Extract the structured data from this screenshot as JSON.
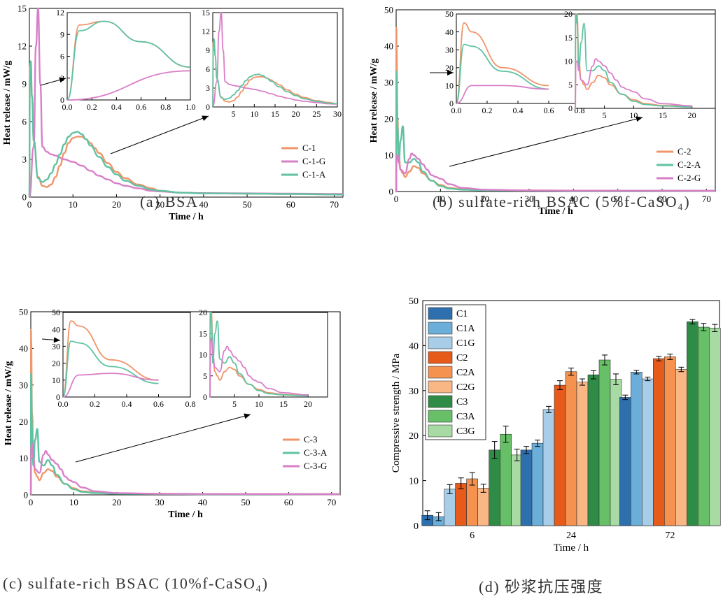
{
  "captions": {
    "a": "(a) BSA",
    "b": "(b) sulfate-rich BSAC (5%f-CaSO₄)",
    "c": "(c) sulfate-rich BSAC (10%f-CaSO₄)",
    "d": "(d) 砂浆抗压强度"
  },
  "chart_data": [
    {
      "id": "a",
      "type": "line",
      "xlabel": "Time / h",
      "ylabel": "Heat release / mW/g",
      "xlim": [
        0,
        72
      ],
      "ylim": [
        0,
        15
      ],
      "xticks": [
        0,
        10,
        20,
        30,
        40,
        50,
        60,
        70
      ],
      "yticks": [
        0,
        3,
        6,
        9,
        12,
        15
      ],
      "legend_position": "right",
      "legend": [
        "C-1",
        "C-1-G",
        "C-1-A"
      ],
      "colors": {
        "C-1": "#f0956a",
        "C-1-G": "#d97fc8",
        "C-1-A": "#5fc3a2"
      },
      "series": [
        {
          "name": "C-1",
          "x": [
            0,
            0.1,
            0.3,
            0.6,
            1,
            2,
            3,
            4,
            5,
            6,
            7,
            8,
            9,
            10,
            11,
            12,
            13,
            14,
            15,
            16,
            18,
            20,
            22,
            25,
            28,
            30,
            35,
            40,
            50,
            60,
            72
          ],
          "y": [
            0,
            10.3,
            10.8,
            8,
            4.5,
            1.6,
            0.9,
            0.8,
            1.0,
            1.6,
            2.5,
            3.5,
            4.3,
            4.7,
            4.8,
            4.8,
            4.6,
            4.3,
            3.9,
            3.5,
            2.7,
            2.0,
            1.5,
            1.0,
            0.7,
            0.5,
            0.35,
            0.3,
            0.28,
            0.25,
            0.2
          ]
        },
        {
          "name": "C-1-G",
          "x": [
            0,
            1,
            1.5,
            2,
            2.5,
            3,
            4,
            5,
            6,
            8,
            10,
            12,
            14,
            16,
            18,
            20,
            22,
            25,
            28,
            30,
            35,
            40,
            50,
            60,
            72
          ],
          "y": [
            0,
            4.0,
            12,
            15,
            9,
            4.0,
            3.6,
            3.4,
            3.3,
            3.0,
            2.8,
            2.5,
            2.1,
            1.7,
            1.4,
            1.1,
            0.9,
            0.7,
            0.5,
            0.45,
            0.35,
            0.32,
            0.3,
            0.28,
            0.25
          ]
        },
        {
          "name": "C-1-A",
          "x": [
            0,
            0.1,
            0.3,
            0.6,
            1,
            2,
            3,
            4,
            5,
            6,
            7,
            8,
            9,
            10,
            11,
            12,
            13,
            14,
            16,
            18,
            20,
            22,
            25,
            28,
            30,
            35,
            40,
            50,
            60,
            72
          ],
          "y": [
            0,
            9.5,
            10.8,
            8,
            4.5,
            1.5,
            1.2,
            1.4,
            1.9,
            2.6,
            3.4,
            4.2,
            4.8,
            5.1,
            5.2,
            5.0,
            4.6,
            4.1,
            3.2,
            2.4,
            1.8,
            1.3,
            0.9,
            0.6,
            0.5,
            0.35,
            0.3,
            0.28,
            0.25,
            0.2
          ]
        }
      ],
      "insets": [
        {
          "xlim": [
            0,
            1
          ],
          "ylim": [
            0,
            12
          ],
          "xticks": [
            0.0,
            0.2,
            0.4,
            0.6,
            0.8,
            1.0
          ],
          "xtick_labels": [
            "0.0",
            "0.2",
            "0.4",
            "0.6",
            "0.8",
            "1.0"
          ],
          "yticks": [
            0,
            3,
            6,
            9,
            12
          ]
        },
        {
          "xlim": [
            0,
            30
          ],
          "ylim": [
            0,
            15
          ],
          "xticks": [
            5,
            10,
            15,
            20,
            25,
            30
          ],
          "yticks": [
            0,
            3,
            6,
            9,
            12,
            15
          ]
        }
      ]
    },
    {
      "id": "b",
      "type": "line",
      "xlabel": "Time / h",
      "ylabel": "Heat release / mW/g",
      "xlim": [
        0,
        72
      ],
      "ylim": [
        0,
        50
      ],
      "xticks": [
        0,
        10,
        20,
        30,
        40,
        50,
        60,
        70
      ],
      "yticks": [
        0,
        10,
        20,
        30,
        40,
        50
      ],
      "legend_position": "right",
      "legend": [
        "C-2",
        "C-2-A",
        "C-2-G"
      ],
      "colors": {
        "C-2": "#f0956a",
        "C-2-A": "#5fc3a2",
        "C-2-G": "#d97fc8"
      },
      "series": [
        {
          "name": "C-2",
          "x": [
            0,
            0.05,
            0.1,
            0.3,
            0.6,
            1,
            1.5,
            2,
            3,
            4,
            5,
            6,
            8,
            10,
            12,
            15,
            20,
            30,
            40,
            72
          ],
          "y": [
            0,
            45,
            40,
            20,
            10,
            6,
            5,
            4,
            5.5,
            7,
            6.5,
            5,
            3,
            1.8,
            1.0,
            0.6,
            0.4,
            0.3,
            0.25,
            0.2
          ]
        },
        {
          "name": "C-2-A",
          "x": [
            0,
            0.05,
            0.1,
            0.3,
            0.6,
            1,
            1.5,
            2,
            3,
            4,
            5,
            6,
            8,
            10,
            12,
            15,
            20,
            30,
            40,
            72
          ],
          "y": [
            0,
            33,
            32,
            18,
            8,
            14,
            18,
            8,
            8,
            9,
            8,
            5.5,
            3,
            1.5,
            0.8,
            0.5,
            0.3,
            0.25,
            0.2,
            0.2
          ]
        },
        {
          "name": "C-2-G",
          "x": [
            0,
            0.1,
            0.3,
            0.6,
            1,
            2,
            3,
            3.5,
            4,
            5,
            6,
            7,
            8,
            9,
            10,
            12,
            15,
            20,
            30,
            40,
            72
          ],
          "y": [
            0,
            10,
            10,
            8,
            6,
            5,
            9,
            10.5,
            10,
            9,
            7.5,
            6,
            4.5,
            4,
            3.5,
            2,
            1,
            0.5,
            0.3,
            0.25,
            0.2
          ]
        }
      ],
      "insets": [
        {
          "xlim": [
            0,
            0.8
          ],
          "ylim": [
            0,
            50
          ],
          "xticks": [
            0.0,
            0.2,
            0.4,
            0.6,
            0.8
          ],
          "xtick_labels": [
            "0.0",
            "0.2",
            "0.4",
            "0.6",
            "0.8"
          ],
          "yticks": [
            0,
            10,
            20,
            30,
            40,
            50
          ]
        },
        {
          "xlim": [
            0,
            24
          ],
          "ylim": [
            0,
            20
          ],
          "xticks": [
            5,
            10,
            15,
            20
          ],
          "yticks": [
            0,
            5,
            10,
            15,
            20
          ]
        }
      ]
    },
    {
      "id": "c",
      "type": "line",
      "xlabel": "Time / h",
      "ylabel": "Heat release / mW/g",
      "xlim": [
        0,
        72
      ],
      "ylim": [
        0,
        50
      ],
      "xticks": [
        0,
        10,
        20,
        30,
        40,
        50,
        60,
        70
      ],
      "yticks": [
        0,
        10,
        20,
        30,
        40,
        50
      ],
      "legend_position": "right",
      "legend": [
        "C-3",
        "C-3-A",
        "C-3-G"
      ],
      "colors": {
        "C-3": "#f0956a",
        "C-3-A": "#5fc3a2",
        "C-3-G": "#d97fc8"
      },
      "series": [
        {
          "name": "C-3",
          "x": [
            0,
            0.05,
            0.1,
            0.3,
            0.6,
            1,
            1.5,
            2,
            3,
            4,
            5,
            6,
            8,
            10,
            12,
            15,
            20,
            30,
            40,
            72
          ],
          "y": [
            0,
            45,
            42,
            22,
            10,
            6,
            5,
            4,
            6,
            7,
            6.5,
            5,
            3,
            1.8,
            1.0,
            0.6,
            0.4,
            0.3,
            0.25,
            0.2
          ]
        },
        {
          "name": "C-3-A",
          "x": [
            0,
            0.05,
            0.1,
            0.3,
            0.6,
            1,
            1.5,
            2,
            3,
            4,
            5,
            6,
            8,
            10,
            12,
            15,
            20,
            30,
            40,
            72
          ],
          "y": [
            0,
            33,
            32,
            18,
            8,
            15,
            18,
            9,
            8,
            9.5,
            8,
            5.5,
            3,
            1.5,
            0.8,
            0.5,
            0.3,
            0.25,
            0.2,
            0.2
          ]
        },
        {
          "name": "C-3-G",
          "x": [
            0,
            0.1,
            0.3,
            0.6,
            1,
            2,
            3,
            3.5,
            4,
            5,
            6,
            7,
            8,
            9,
            10,
            12,
            15,
            20,
            30,
            40,
            72
          ],
          "y": [
            0,
            13,
            14,
            10,
            7,
            6,
            11,
            12,
            11,
            9.5,
            8.5,
            7,
            5,
            4,
            3.5,
            2,
            1,
            0.5,
            0.3,
            0.25,
            0.2
          ]
        }
      ],
      "insets": [
        {
          "xlim": [
            0,
            0.8
          ],
          "ylim": [
            0,
            50
          ],
          "xticks": [
            0.0,
            0.2,
            0.4,
            0.6,
            0.8
          ],
          "xtick_labels": [
            "0.0",
            "0.2",
            "0.4",
            "0.6",
            "0.8"
          ],
          "yticks": [
            0,
            10,
            20,
            30,
            40,
            50
          ]
        },
        {
          "xlim": [
            0,
            24
          ],
          "ylim": [
            0,
            20
          ],
          "xticks": [
            5,
            10,
            15,
            20
          ],
          "yticks": [
            0,
            5,
            10,
            15,
            20
          ]
        }
      ]
    },
    {
      "id": "d",
      "type": "bar",
      "xlabel": "Time / h",
      "ylabel": "Compressive strength / MPa",
      "categories": [
        "6",
        "24",
        "72"
      ],
      "ylim": [
        0,
        50
      ],
      "yticks": [
        0,
        10,
        20,
        30,
        40,
        50
      ],
      "legend_position": "top-left",
      "series": [
        {
          "name": "C1",
          "color": "#2e6fad",
          "values": [
            2.3,
            16.8,
            28.5
          ],
          "errors": [
            1.0,
            0.8,
            0.5
          ]
        },
        {
          "name": "C1A",
          "color": "#6aaed9",
          "values": [
            2.0,
            18.3,
            34.1
          ],
          "errors": [
            0.9,
            0.7,
            0.4
          ]
        },
        {
          "name": "C1G",
          "color": "#a8cde8",
          "values": [
            8.1,
            25.8,
            32.6
          ],
          "errors": [
            1.0,
            0.7,
            0.4
          ]
        },
        {
          "name": "C2",
          "color": "#e65a1a",
          "values": [
            9.4,
            31.2,
            37.1
          ],
          "errors": [
            1.2,
            1.0,
            0.5
          ]
        },
        {
          "name": "C2A",
          "color": "#f5924f",
          "values": [
            10.4,
            34.2,
            37.5
          ],
          "errors": [
            1.4,
            0.8,
            0.6
          ]
        },
        {
          "name": "C2G",
          "color": "#f9b785",
          "values": [
            8.3,
            31.9,
            34.7
          ],
          "errors": [
            0.9,
            0.7,
            0.5
          ]
        },
        {
          "name": "C3",
          "color": "#2f8c46",
          "values": [
            16.8,
            33.5,
            45.3
          ],
          "errors": [
            1.9,
            0.9,
            0.5
          ]
        },
        {
          "name": "C3A",
          "color": "#67bf67",
          "values": [
            20.3,
            36.8,
            44.1
          ],
          "errors": [
            1.8,
            1.1,
            0.8
          ]
        },
        {
          "name": "C3G",
          "color": "#a8dba4",
          "values": [
            15.7,
            32.5,
            43.9
          ],
          "errors": [
            1.3,
            1.2,
            0.8
          ]
        }
      ]
    }
  ]
}
